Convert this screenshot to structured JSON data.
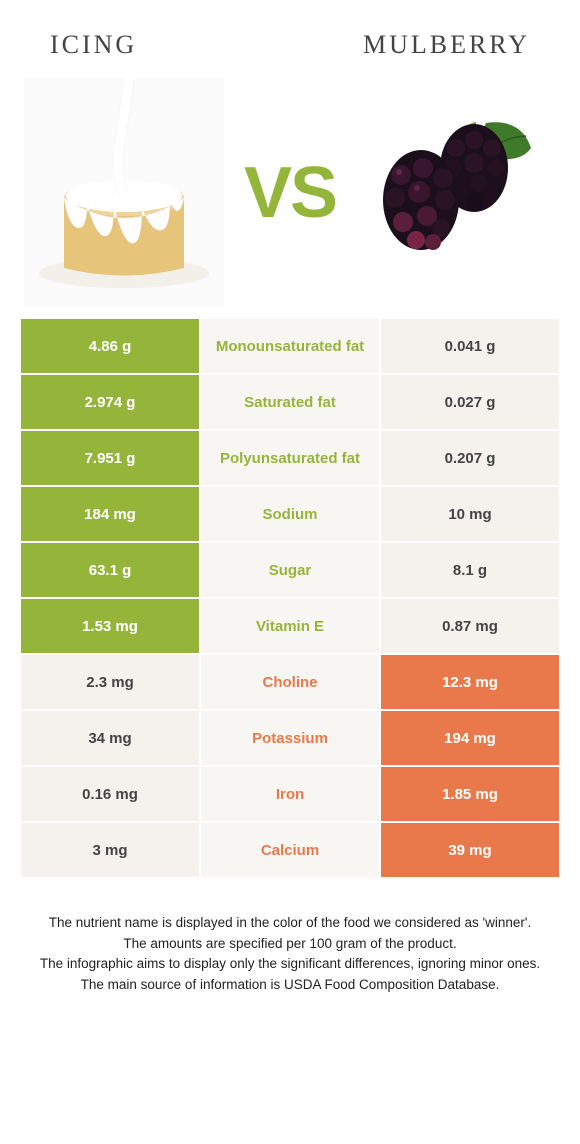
{
  "header": {
    "left": "Icing",
    "right": "Mulberry"
  },
  "vs": "VS",
  "colors": {
    "left_win_bg": "#95b53a",
    "right_win_bg": "#e9794b",
    "lose_bg": "#f5f2ed",
    "mid_bg": "#f8f6f3",
    "header_text": "#444444",
    "footer_text": "#222222"
  },
  "rows": [
    {
      "label": "Monounsaturated fat",
      "left": "4.86 g",
      "right": "0.041 g",
      "winner": "left"
    },
    {
      "label": "Saturated fat",
      "left": "2.974 g",
      "right": "0.027 g",
      "winner": "left"
    },
    {
      "label": "Polyunsaturated fat",
      "left": "7.951 g",
      "right": "0.207 g",
      "winner": "left"
    },
    {
      "label": "Sodium",
      "left": "184 mg",
      "right": "10 mg",
      "winner": "left"
    },
    {
      "label": "Sugar",
      "left": "63.1 g",
      "right": "8.1 g",
      "winner": "left"
    },
    {
      "label": "Vitamin E",
      "left": "1.53 mg",
      "right": "0.87 mg",
      "winner": "left"
    },
    {
      "label": "Choline",
      "left": "2.3 mg",
      "right": "12.3 mg",
      "winner": "right"
    },
    {
      "label": "Potassium",
      "left": "34 mg",
      "right": "194 mg",
      "winner": "right"
    },
    {
      "label": "Iron",
      "left": "0.16 mg",
      "right": "1.85 mg",
      "winner": "right"
    },
    {
      "label": "Calcium",
      "left": "3 mg",
      "right": "39 mg",
      "winner": "right"
    }
  ],
  "footer": [
    "The nutrient name is displayed in the color of the food we considered as 'winner'.",
    "The amounts are specified per 100 gram of the product.",
    "The infographic aims to display only the significant differences, ignoring minor ones.",
    "The main source of information is USDA Food Composition Database."
  ]
}
